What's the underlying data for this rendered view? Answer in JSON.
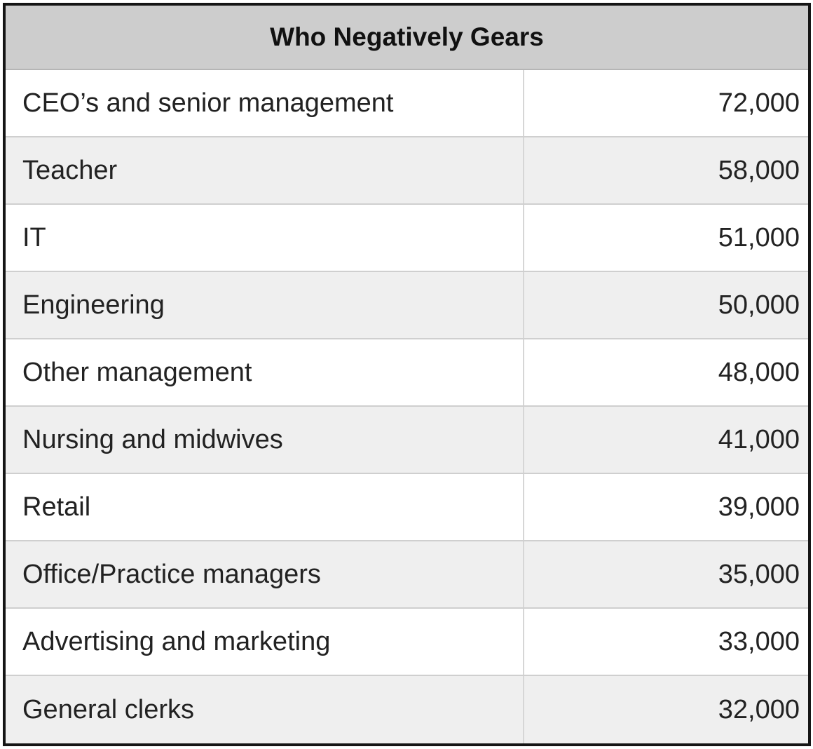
{
  "table": {
    "title": "Who Negatively Gears",
    "rows": [
      [
        "CEO’s and senior management",
        "72,000"
      ],
      [
        "Teacher",
        "58,000"
      ],
      [
        "IT",
        "51,000"
      ],
      [
        "Engineering",
        "50,000"
      ],
      [
        "Other management",
        "48,000"
      ],
      [
        "Nursing and midwives",
        "41,000"
      ],
      [
        "Retail",
        "39,000"
      ],
      [
        "Office/Practice managers",
        "35,000"
      ],
      [
        "Advertising and marketing",
        "33,000"
      ],
      [
        "General clerks",
        "32,000"
      ]
    ]
  }
}
